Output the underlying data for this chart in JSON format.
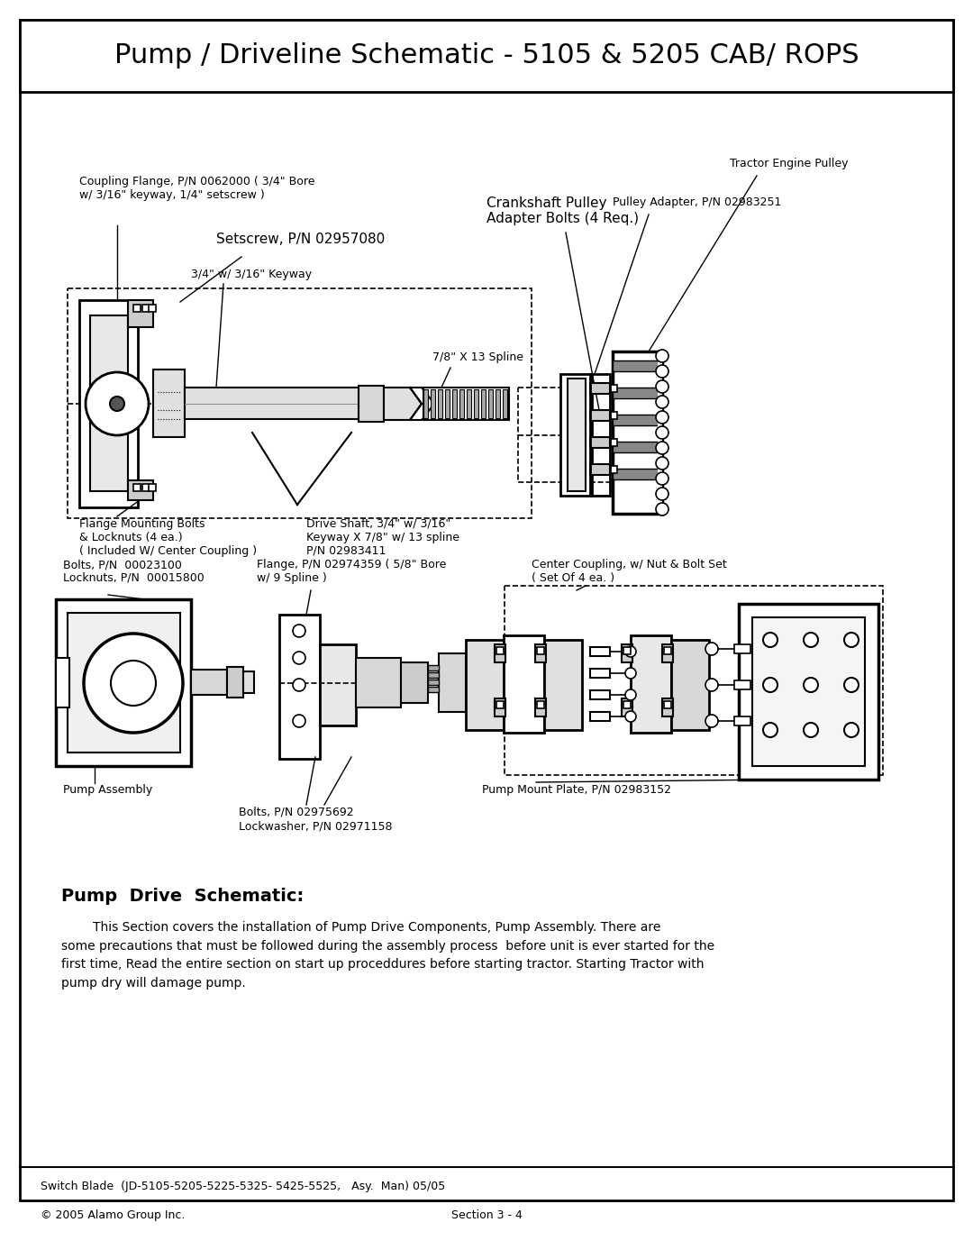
{
  "title": "Pump / Driveline Schematic - 5105 & 5205 CAB/ ROPS",
  "background_color": "#ffffff",
  "footer_line1": "Switch Blade  (JD-5105-5205-5225-5325- 5425-5525,   Asy.  Man) 05/05",
  "footer_line2_left": "© 2005 Alamo Group Inc.",
  "footer_line2_right": "Section 3 - 4",
  "section_heading": "Pump  Drive  Schematic:",
  "section_body": "        This Section covers the installation of Pump Drive Components, Pump Assembly. There are\nsome precautions that must be followed during the assembly process  before unit is ever started for the\nfirst time, Read the entire section on start up proceddures before starting tractor. Starting Tractor with\npump dry will damage pump."
}
